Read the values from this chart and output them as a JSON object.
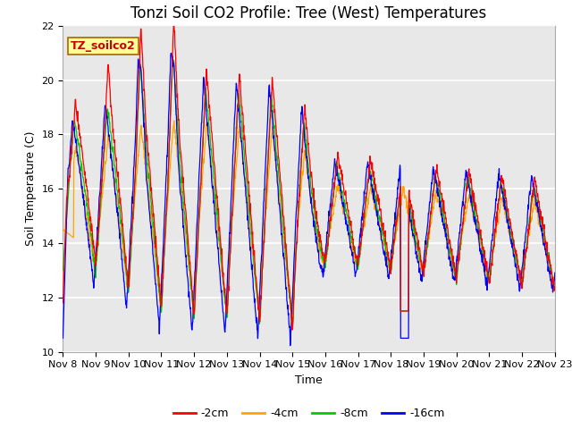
{
  "title": "Tonzi Soil CO2 Profile: Tree (West) Temperatures",
  "xlabel": "Time",
  "ylabel": "Soil Temperature (C)",
  "ylim": [
    10,
    22
  ],
  "xlim": [
    0,
    15
  ],
  "x_tick_labels": [
    "Nov 8",
    "Nov 9",
    "Nov 10",
    "Nov 11",
    "Nov 12",
    "Nov 13",
    "Nov 14",
    "Nov 15",
    "Nov 16",
    "Nov 17",
    "Nov 18",
    "Nov 19",
    "Nov 20",
    "Nov 21",
    "Nov 22",
    "Nov 23"
  ],
  "yticks": [
    10,
    12,
    14,
    16,
    18,
    20,
    22
  ],
  "series_labels": [
    "-2cm",
    "-4cm",
    "-8cm",
    "-16cm"
  ],
  "series_colors": [
    "#ff0000",
    "#ffa500",
    "#00cc00",
    "#0000ff"
  ],
  "plot_bg_color": "#e8e8e8",
  "fig_bg_color": "#ffffff",
  "annotation_text": "TZ_soilco2",
  "annotation_color": "#cc0000",
  "annotation_bg": "#ffff99",
  "annotation_border": "#aa6600",
  "title_fontsize": 12,
  "label_fontsize": 9,
  "tick_fontsize": 8
}
